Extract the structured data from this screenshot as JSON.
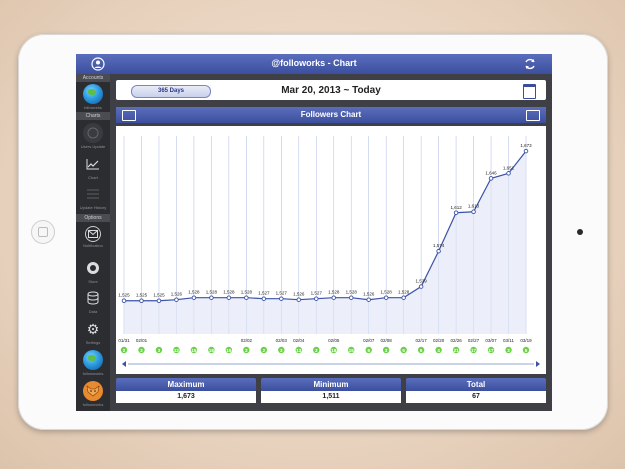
{
  "header": {
    "title": "@followorks - Chart"
  },
  "sidebar": {
    "accounts_header": "Accounts",
    "charts_header": "Charts",
    "options_header": "Options",
    "items": [
      {
        "label": "followorks",
        "icon": "globe-icon"
      },
      {
        "label": "Users Update",
        "icon": "users-icon"
      },
      {
        "label": "Chart",
        "icon": "chart-icon"
      },
      {
        "label": "Update History",
        "icon": "list-icon"
      },
      {
        "label": "Notification",
        "icon": "mail-icon"
      },
      {
        "label": "Store",
        "icon": "store-icon"
      },
      {
        "label": "Data",
        "icon": "database-icon"
      },
      {
        "label": "Settings",
        "icon": "gear-icon"
      },
      {
        "label": "followworks",
        "icon": "globe-icon"
      },
      {
        "label": "followworks",
        "icon": "fox-icon"
      }
    ]
  },
  "datebar": {
    "range_pill": "365 Days",
    "date_range": "Mar 20, 2013 ~ Today"
  },
  "chart_header": {
    "title": "Followers Chart"
  },
  "chart_data": {
    "type": "line",
    "x": [
      "01/31",
      "02/01",
      "",
      "",
      "",
      "",
      "",
      "02/02",
      "",
      "02/03",
      "02/04",
      "",
      "02/05",
      "",
      "02/07",
      "02/08",
      "",
      "02/17",
      "02/20",
      "02/26",
      "02/27",
      "03/07",
      "03/11",
      "03/19"
    ],
    "values": [
      1525,
      1525,
      1525,
      1526,
      1528,
      1528,
      1528,
      1528,
      1527,
      1527,
      1526,
      1527,
      1528,
      1528,
      1526,
      1528,
      1528,
      1539,
      1574,
      1612,
      1613,
      1646,
      1651,
      1673
    ],
    "value_labels": [
      "1,525",
      "1,525",
      "1,525",
      "1,526",
      "1,528",
      "1,528",
      "1,528",
      "1,528",
      "1,527",
      "1,527",
      "1,526",
      "1,527",
      "1,528",
      "1,528",
      "1,526",
      "1,528",
      "1,528",
      "1,539",
      "1,574",
      "1,612",
      "1,613",
      "1,646",
      "1,651",
      "1,673"
    ],
    "badges": [
      "2",
      "2",
      "3",
      "12",
      "15",
      "18",
      "19",
      "2",
      "2",
      "3",
      "13",
      "3",
      "18",
      "15",
      "6",
      "3",
      "5",
      "6",
      "4",
      "21",
      "17",
      "17",
      "3",
      "5"
    ],
    "ylim": [
      1500,
      1680
    ],
    "grid": "vertical",
    "color": "#3b52a8",
    "badge_color": "#6cd04a"
  },
  "stats": [
    {
      "label": "Maximum",
      "value": "1,673"
    },
    {
      "label": "Minimum",
      "value": "1,511"
    },
    {
      "label": "Total",
      "value": "67"
    }
  ]
}
